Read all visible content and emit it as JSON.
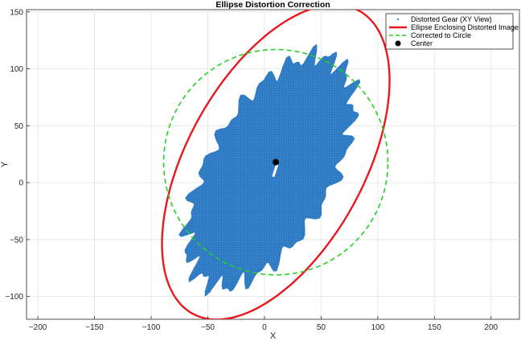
{
  "chart_data": {
    "type": "scatter",
    "title": "Ellipse Distortion Correction",
    "xlabel": "X",
    "ylabel": "Y",
    "xlim": [
      -210,
      225
    ],
    "ylim": [
      -120,
      152
    ],
    "xticks": [
      -200,
      -150,
      -100,
      -50,
      0,
      50,
      100,
      150,
      200
    ],
    "yticks": [
      -100,
      -50,
      0,
      50,
      100,
      150
    ],
    "grid": true,
    "legend_position": "top-right",
    "legend": [
      "Distorted Gear (XY View)",
      "Ellipse Enclosing Distorted Image",
      "Corrected to Circle",
      "Center"
    ],
    "series": [
      {
        "name": "Distorted Gear (XY View)",
        "kind": "point-cloud",
        "color": "#2e7bc4",
        "center": [
          5,
          10
        ],
        "semi_major": 118,
        "semi_minor": 57,
        "angle_deg": 60,
        "outline_jitter": 6
      },
      {
        "name": "Ellipse Enclosing Distorted Image",
        "kind": "ellipse",
        "color": "#e8191f",
        "center": [
          10,
          18
        ],
        "semi_major": 152,
        "semi_minor": 78,
        "angle_deg": 61
      },
      {
        "name": "Corrected to Circle",
        "kind": "ellipse",
        "color": "#22d41f",
        "dashed": true,
        "center": [
          10,
          18
        ],
        "semi_major": 99,
        "semi_minor": 99,
        "angle_deg": 0
      },
      {
        "name": "Center",
        "kind": "point",
        "color": "#000000",
        "x": 10,
        "y": 18
      }
    ]
  }
}
